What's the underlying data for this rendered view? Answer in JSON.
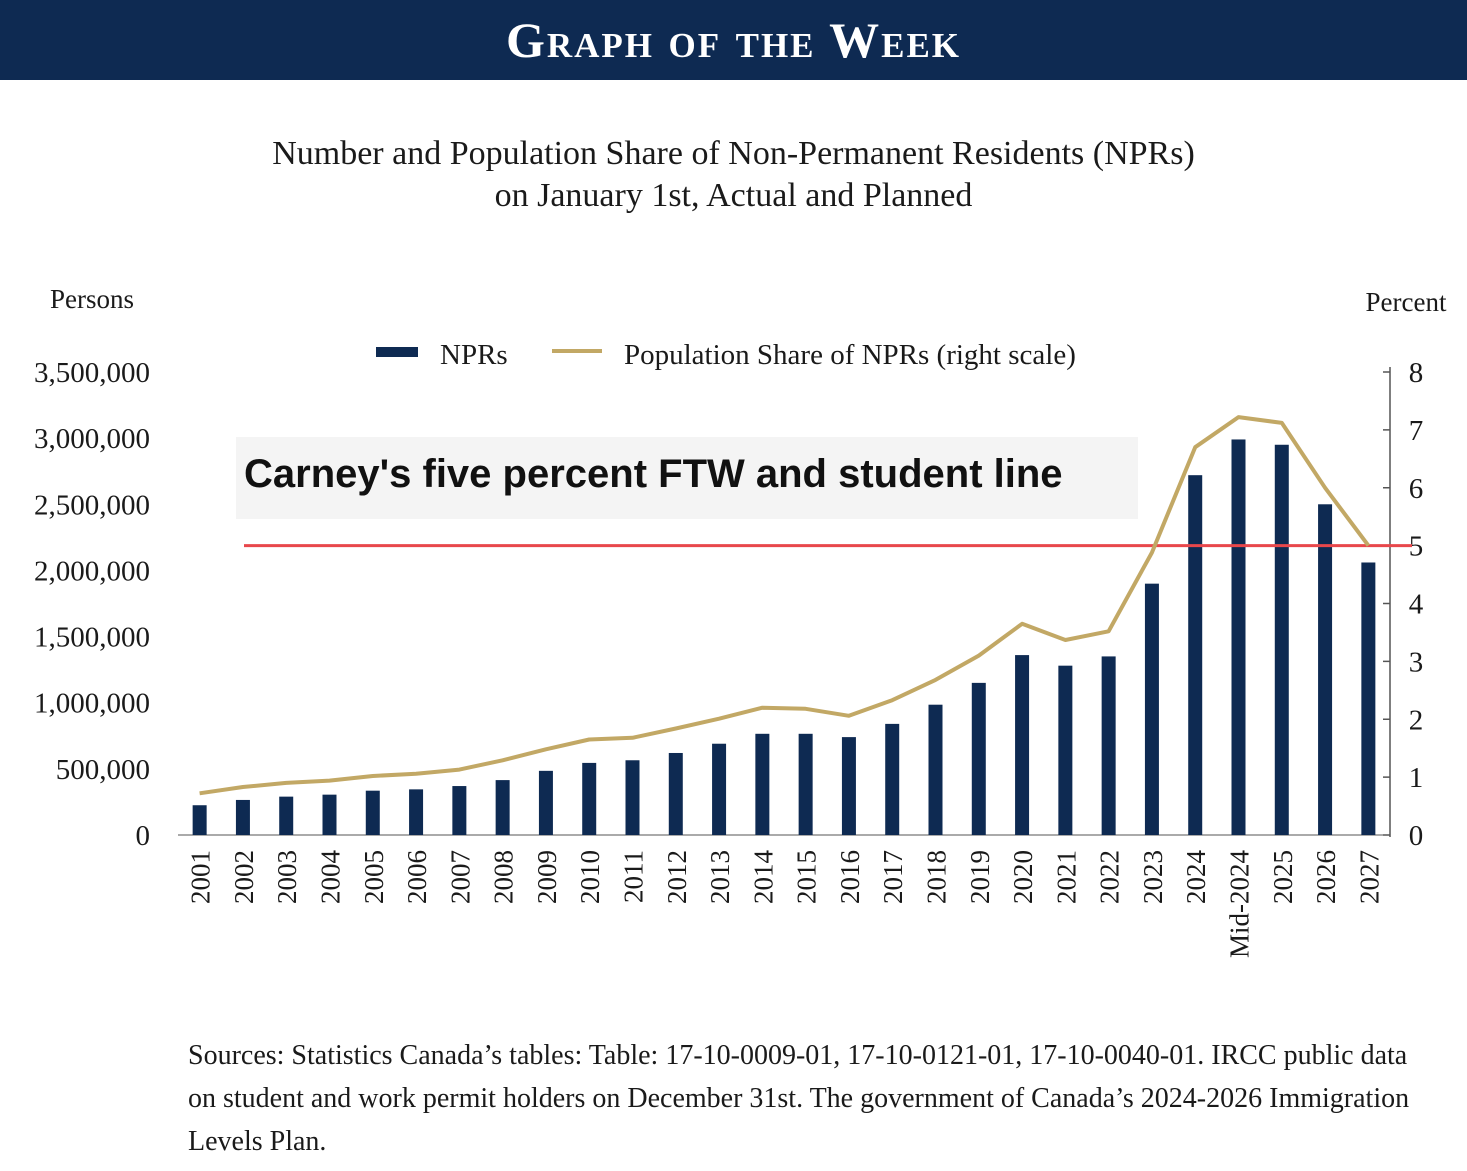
{
  "header": {
    "banner": "Graph of the Week"
  },
  "chart_data": {
    "type": "bar",
    "title": "Number and Population Share of Non-Permanent Residents (NPRs)",
    "subtitle": "on January 1st, Actual and Planned",
    "ylabel_left": "Persons",
    "ylabel_right": "Percent",
    "ylim_left": [
      0,
      3500000
    ],
    "ylim_right": [
      0,
      8
    ],
    "yticks_left": [
      "3,500,000",
      "3,000,000",
      "2,500,000",
      "2,000,000",
      "1,500,000",
      "1,000,000",
      "500,000",
      "0"
    ],
    "yticks_right": [
      "8",
      "7",
      "6",
      "5",
      "4",
      "3",
      "2",
      "1",
      "0"
    ],
    "categories": [
      "2001",
      "2002",
      "2003",
      "2004",
      "2005",
      "2006",
      "2007",
      "2008",
      "2009",
      "2010",
      "2011",
      "2012",
      "2013",
      "2014",
      "2015",
      "2016",
      "2017",
      "2018",
      "2019",
      "2020",
      "2021",
      "2022",
      "2023",
      "2024",
      "Mid-2024",
      "2025",
      "2026",
      "2027"
    ],
    "series": [
      {
        "name": "NPRs",
        "type": "bar",
        "axis": "left",
        "color": "#0e2a52",
        "values": [
          225000,
          265000,
          290000,
          305000,
          335000,
          345000,
          370000,
          415000,
          485000,
          545000,
          565000,
          620000,
          690000,
          765000,
          765000,
          740000,
          840000,
          985000,
          1150000,
          1360000,
          1280000,
          1350000,
          1900000,
          2720000,
          2990000,
          2950000,
          2500000,
          2060000
        ]
      },
      {
        "name": "Population Share of NPRs (right scale)",
        "type": "line",
        "axis": "right",
        "color": "#c2a865",
        "values": [
          0.72,
          0.83,
          0.9,
          0.94,
          1.02,
          1.06,
          1.13,
          1.29,
          1.48,
          1.65,
          1.68,
          1.84,
          2.01,
          2.2,
          2.18,
          2.06,
          2.33,
          2.68,
          3.1,
          3.65,
          3.37,
          3.52,
          4.88,
          6.7,
          7.22,
          7.12,
          6.0,
          5.0
        ]
      }
    ],
    "reference_line": {
      "value": 5,
      "axis": "right",
      "color": "#e8474b"
    },
    "annotation": "Carney's five percent FTW and student line",
    "legend": "top-center",
    "grid": false
  },
  "footer": {
    "sources": "Sources: Statistics Canada’s tables: Table: 17-10-0009-01, 17-10-0121-01, 17-10-0040-01. IRCC public data on student and work permit holders on December 31st. The government of Canada’s 2024-2026 Immigration Levels Plan."
  }
}
